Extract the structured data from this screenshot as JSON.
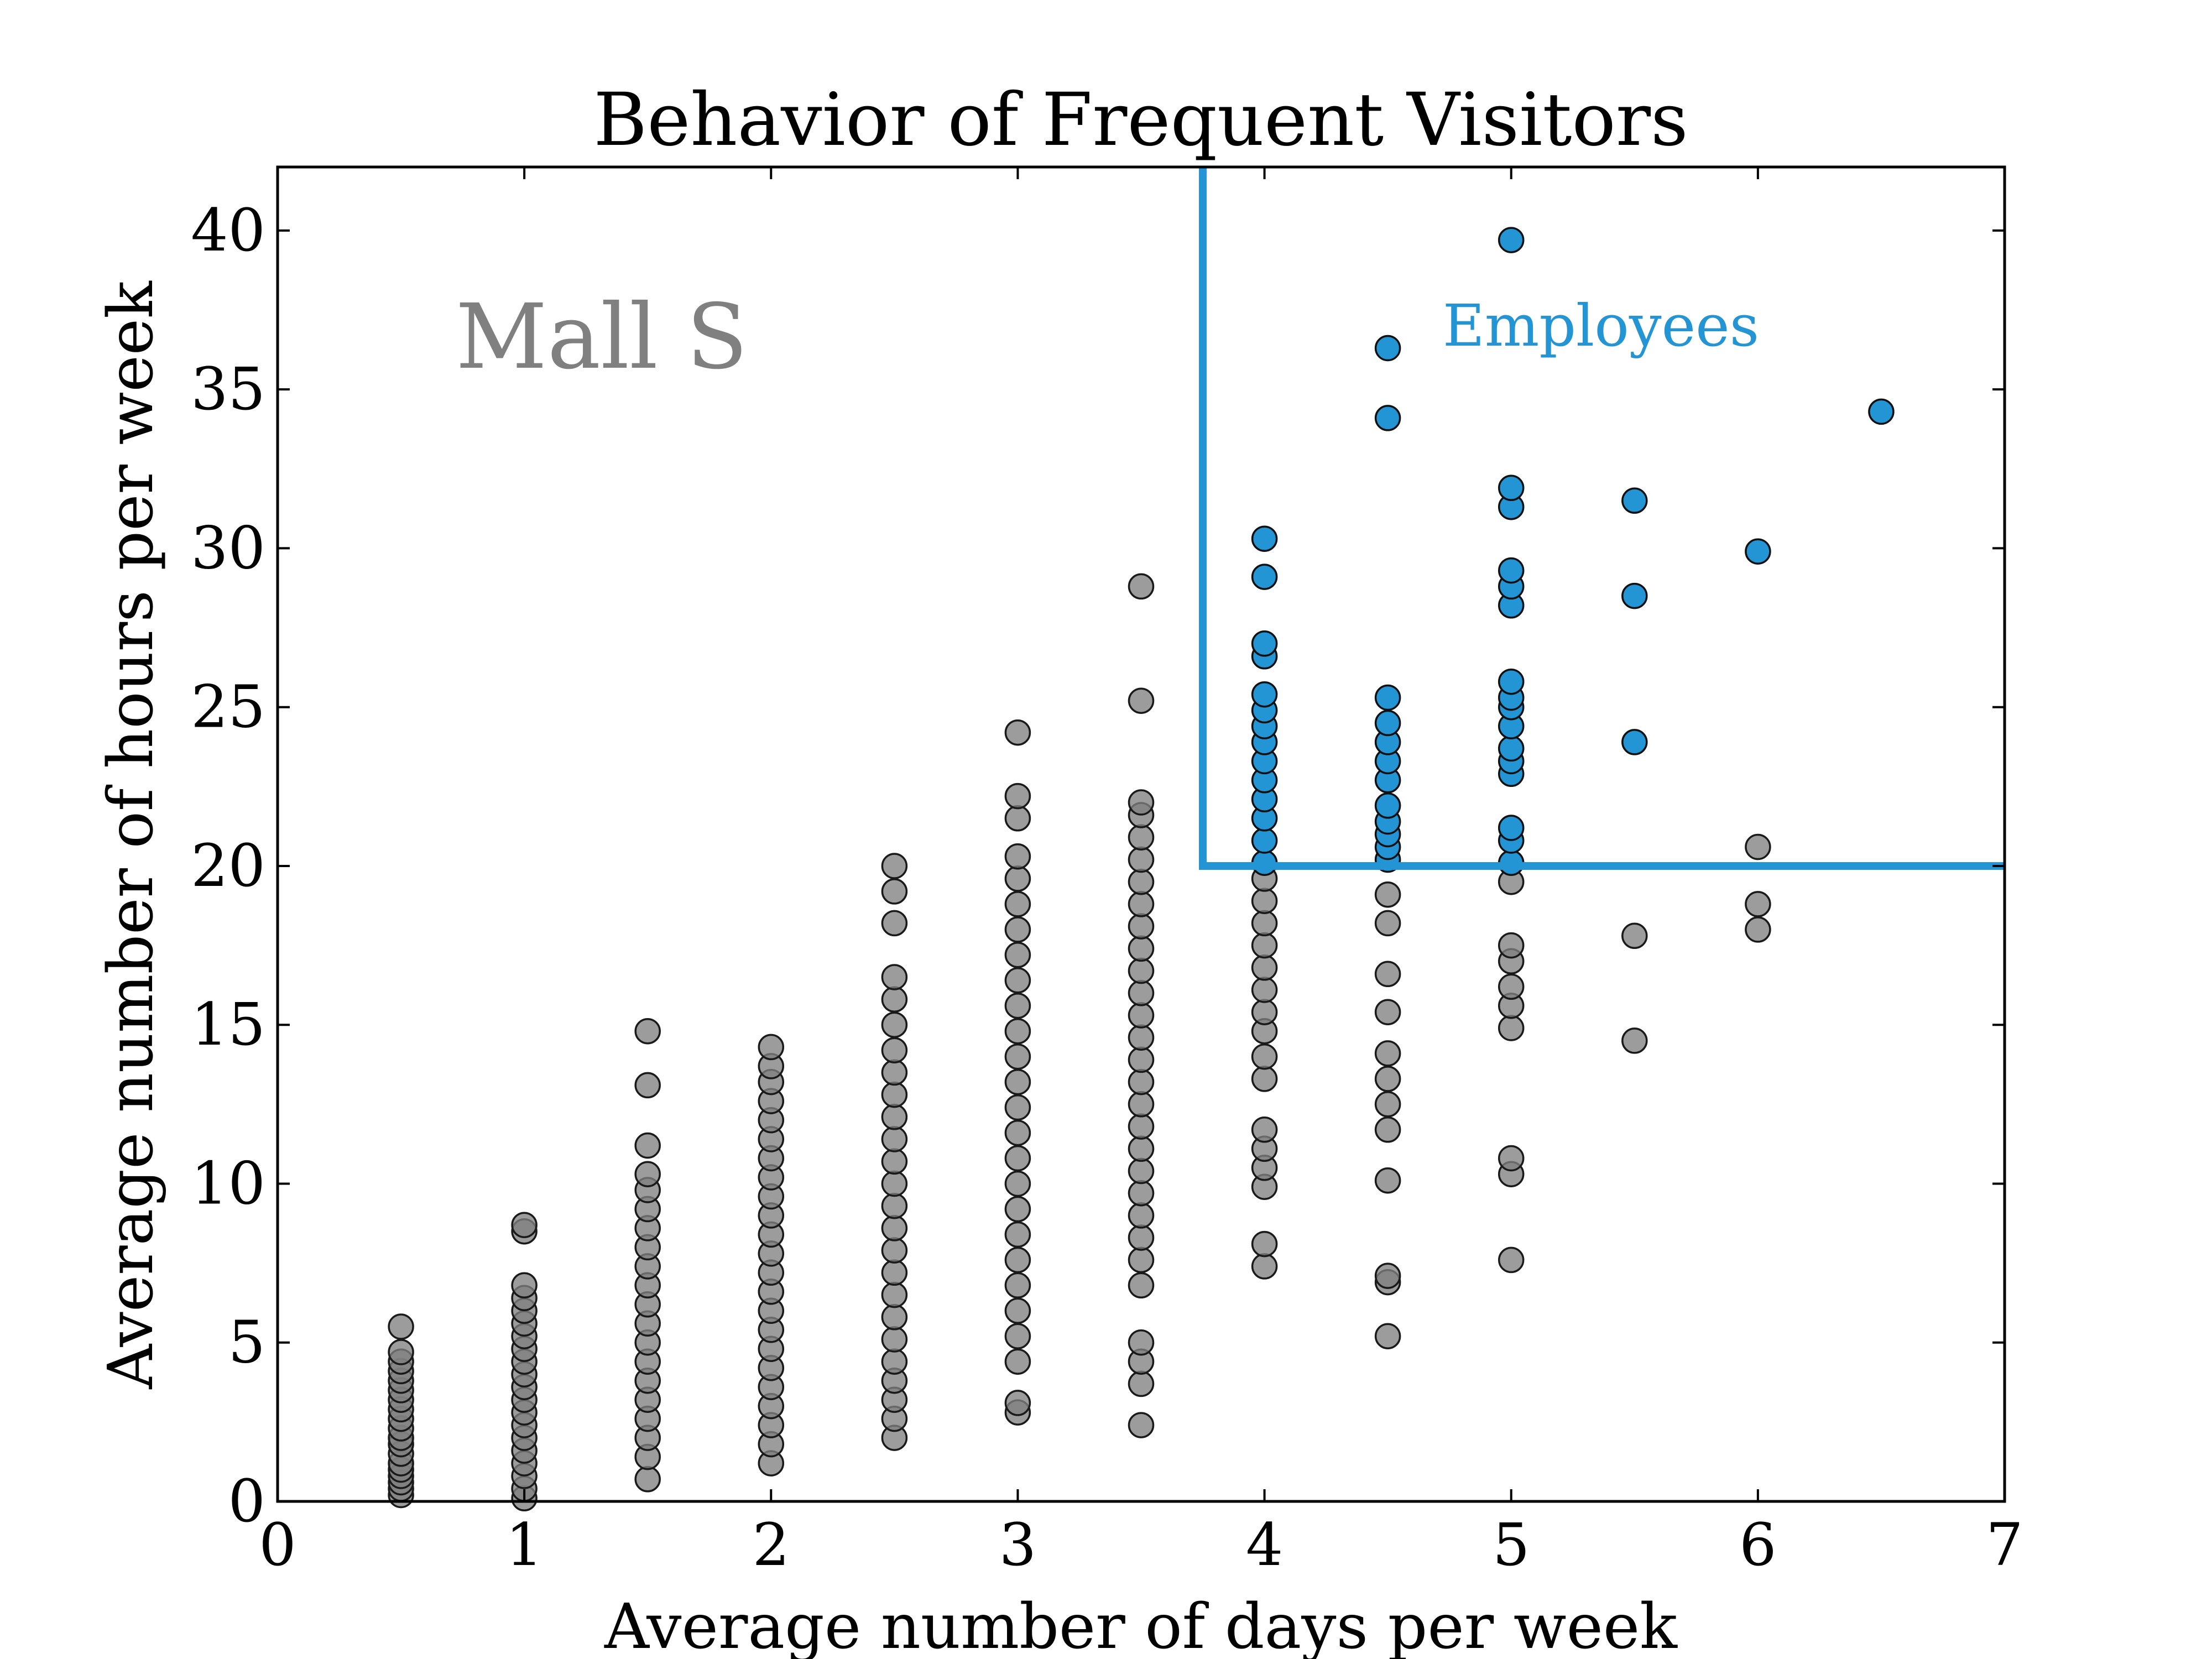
{
  "chart_data": {
    "type": "scatter",
    "title": "Behavior of Frequent Visitors",
    "xlabel": "Average number of days per week",
    "ylabel": "Average number of hours per week",
    "xlim": [
      0,
      7
    ],
    "ylim": [
      0,
      42
    ],
    "xticks": [
      "0",
      "1",
      "2",
      "3",
      "4",
      "5",
      "6",
      "7"
    ],
    "yticks": [
      "0",
      "5",
      "10",
      "15",
      "20",
      "25",
      "30",
      "35",
      "40"
    ],
    "grid": false,
    "annotations": {
      "mall": "Mall S",
      "employees": "Employees"
    },
    "colors": {
      "visitor": "#808080",
      "employee": "#2394d4",
      "threshold": "#2394d4"
    },
    "threshold": {
      "x": 3.75,
      "y": 20
    },
    "series": [
      {
        "points": [
          [
            0.5,
            0.2
          ],
          [
            0.5,
            0.4
          ],
          [
            0.5,
            0.6
          ],
          [
            0.5,
            0.8
          ],
          [
            0.5,
            1.0
          ],
          [
            0.5,
            1.2
          ],
          [
            0.5,
            1.5
          ],
          [
            0.5,
            1.8
          ],
          [
            0.5,
            2.0
          ],
          [
            0.5,
            2.3
          ],
          [
            0.5,
            2.6
          ],
          [
            0.5,
            2.9
          ],
          [
            0.5,
            3.2
          ],
          [
            0.5,
            3.5
          ],
          [
            0.5,
            3.8
          ],
          [
            0.5,
            4.1
          ],
          [
            0.5,
            4.4
          ],
          [
            0.5,
            4.7
          ],
          [
            0.5,
            5.5
          ],
          [
            1,
            0.1
          ],
          [
            1,
            0.4
          ],
          [
            1,
            0.8
          ],
          [
            1,
            1.2
          ],
          [
            1,
            1.6
          ],
          [
            1,
            2.0
          ],
          [
            1,
            2.4
          ],
          [
            1,
            2.8
          ],
          [
            1,
            3.2
          ],
          [
            1,
            3.6
          ],
          [
            1,
            4.0
          ],
          [
            1,
            4.4
          ],
          [
            1,
            4.8
          ],
          [
            1,
            5.2
          ],
          [
            1,
            5.6
          ],
          [
            1,
            6.0
          ],
          [
            1,
            6.4
          ],
          [
            1,
            6.8
          ],
          [
            1,
            8.5
          ],
          [
            1,
            8.7
          ],
          [
            1.5,
            0.7
          ],
          [
            1.5,
            1.4
          ],
          [
            1.5,
            2.0
          ],
          [
            1.5,
            2.6
          ],
          [
            1.5,
            3.2
          ],
          [
            1.5,
            3.8
          ],
          [
            1.5,
            4.4
          ],
          [
            1.5,
            5.0
          ],
          [
            1.5,
            5.6
          ],
          [
            1.5,
            6.2
          ],
          [
            1.5,
            6.8
          ],
          [
            1.5,
            7.4
          ],
          [
            1.5,
            8.0
          ],
          [
            1.5,
            8.6
          ],
          [
            1.5,
            9.2
          ],
          [
            1.5,
            9.8
          ],
          [
            1.5,
            10.3
          ],
          [
            1.5,
            11.2
          ],
          [
            1.5,
            13.1
          ],
          [
            1.5,
            14.8
          ],
          [
            2,
            1.2
          ],
          [
            2,
            1.8
          ],
          [
            2,
            2.4
          ],
          [
            2,
            3.0
          ],
          [
            2,
            3.6
          ],
          [
            2,
            4.2
          ],
          [
            2,
            4.8
          ],
          [
            2,
            5.4
          ],
          [
            2,
            6.0
          ],
          [
            2,
            6.6
          ],
          [
            2,
            7.2
          ],
          [
            2,
            7.8
          ],
          [
            2,
            8.4
          ],
          [
            2,
            9.0
          ],
          [
            2,
            9.6
          ],
          [
            2,
            10.2
          ],
          [
            2,
            10.8
          ],
          [
            2,
            11.4
          ],
          [
            2,
            12.0
          ],
          [
            2,
            12.6
          ],
          [
            2,
            13.2
          ],
          [
            2,
            13.7
          ],
          [
            2,
            14.3
          ],
          [
            2.5,
            2.0
          ],
          [
            2.5,
            2.6
          ],
          [
            2.5,
            3.2
          ],
          [
            2.5,
            3.8
          ],
          [
            2.5,
            4.4
          ],
          [
            2.5,
            5.1
          ],
          [
            2.5,
            5.8
          ],
          [
            2.5,
            6.5
          ],
          [
            2.5,
            7.2
          ],
          [
            2.5,
            7.9
          ],
          [
            2.5,
            8.6
          ],
          [
            2.5,
            9.3
          ],
          [
            2.5,
            10.0
          ],
          [
            2.5,
            10.7
          ],
          [
            2.5,
            11.4
          ],
          [
            2.5,
            12.1
          ],
          [
            2.5,
            12.8
          ],
          [
            2.5,
            13.5
          ],
          [
            2.5,
            14.2
          ],
          [
            2.5,
            15.0
          ],
          [
            2.5,
            15.8
          ],
          [
            2.5,
            16.5
          ],
          [
            2.5,
            18.2
          ],
          [
            2.5,
            19.2
          ],
          [
            2.5,
            20.0
          ],
          [
            3,
            2.8
          ],
          [
            3,
            3.1
          ],
          [
            3,
            4.4
          ],
          [
            3,
            5.2
          ],
          [
            3,
            6.0
          ],
          [
            3,
            6.8
          ],
          [
            3,
            7.6
          ],
          [
            3,
            8.4
          ],
          [
            3,
            9.2
          ],
          [
            3,
            10.0
          ],
          [
            3,
            10.8
          ],
          [
            3,
            11.6
          ],
          [
            3,
            12.4
          ],
          [
            3,
            13.2
          ],
          [
            3,
            14.0
          ],
          [
            3,
            14.8
          ],
          [
            3,
            15.6
          ],
          [
            3,
            16.4
          ],
          [
            3,
            17.2
          ],
          [
            3,
            18.0
          ],
          [
            3,
            18.8
          ],
          [
            3,
            19.6
          ],
          [
            3,
            20.3
          ],
          [
            3,
            21.5
          ],
          [
            3,
            22.2
          ],
          [
            3,
            24.2
          ],
          [
            3.5,
            2.4
          ],
          [
            3.5,
            3.7
          ],
          [
            3.5,
            4.4
          ],
          [
            3.5,
            5.0
          ],
          [
            3.5,
            6.8
          ],
          [
            3.5,
            7.6
          ],
          [
            3.5,
            8.3
          ],
          [
            3.5,
            9.0
          ],
          [
            3.5,
            9.7
          ],
          [
            3.5,
            10.4
          ],
          [
            3.5,
            11.1
          ],
          [
            3.5,
            11.8
          ],
          [
            3.5,
            12.5
          ],
          [
            3.5,
            13.2
          ],
          [
            3.5,
            13.9
          ],
          [
            3.5,
            14.6
          ],
          [
            3.5,
            15.3
          ],
          [
            3.5,
            16.0
          ],
          [
            3.5,
            16.7
          ],
          [
            3.5,
            17.4
          ],
          [
            3.5,
            18.1
          ],
          [
            3.5,
            18.8
          ],
          [
            3.5,
            19.5
          ],
          [
            3.5,
            20.2
          ],
          [
            3.5,
            20.9
          ],
          [
            3.5,
            21.6
          ],
          [
            3.5,
            22.0
          ],
          [
            3.5,
            25.2
          ],
          [
            3.5,
            28.8
          ],
          [
            4,
            7.4
          ],
          [
            4,
            8.1
          ],
          [
            4,
            9.9
          ],
          [
            4,
            10.5
          ],
          [
            4,
            11.1
          ],
          [
            4,
            11.7
          ],
          [
            4,
            13.3
          ],
          [
            4,
            14.0
          ],
          [
            4,
            14.8
          ],
          [
            4,
            15.4
          ],
          [
            4,
            16.1
          ],
          [
            4,
            16.8
          ],
          [
            4,
            17.5
          ],
          [
            4,
            18.2
          ],
          [
            4,
            18.9
          ],
          [
            4,
            19.6
          ],
          [
            4.5,
            5.2
          ],
          [
            4.5,
            6.9
          ],
          [
            4.5,
            7.1
          ],
          [
            4.5,
            10.1
          ],
          [
            4.5,
            11.7
          ],
          [
            4.5,
            12.5
          ],
          [
            4.5,
            13.3
          ],
          [
            4.5,
            14.1
          ],
          [
            4.5,
            15.4
          ],
          [
            4.5,
            16.6
          ],
          [
            4.5,
            18.2
          ],
          [
            4.5,
            19.1
          ],
          [
            5,
            7.6
          ],
          [
            5,
            10.3
          ],
          [
            5,
            10.8
          ],
          [
            5,
            14.9
          ],
          [
            5,
            15.6
          ],
          [
            5,
            16.2
          ],
          [
            5,
            17.0
          ],
          [
            5,
            17.5
          ],
          [
            5,
            19.5
          ],
          [
            5.5,
            14.5
          ],
          [
            5.5,
            17.8
          ],
          [
            6,
            18.0
          ],
          [
            6,
            18.8
          ],
          [
            6,
            20.6
          ]
        ]
      },
      {
        "points": [
          [
            4,
            20.1
          ],
          [
            4,
            20.8
          ],
          [
            4,
            21.5
          ],
          [
            4,
            22.1
          ],
          [
            4,
            22.7
          ],
          [
            4,
            23.3
          ],
          [
            4,
            23.9
          ],
          [
            4,
            24.4
          ],
          [
            4,
            24.9
          ],
          [
            4,
            25.4
          ],
          [
            4,
            26.6
          ],
          [
            4,
            27.0
          ],
          [
            4,
            29.1
          ],
          [
            4,
            30.3
          ],
          [
            4.5,
            20.2
          ],
          [
            4.5,
            20.6
          ],
          [
            4.5,
            21.0
          ],
          [
            4.5,
            21.4
          ],
          [
            4.5,
            21.9
          ],
          [
            4.5,
            22.7
          ],
          [
            4.5,
            23.3
          ],
          [
            4.5,
            23.9
          ],
          [
            4.5,
            24.5
          ],
          [
            4.5,
            25.3
          ],
          [
            4.5,
            34.1
          ],
          [
            4.5,
            36.3
          ],
          [
            5,
            20.1
          ],
          [
            5,
            20.8
          ],
          [
            5,
            21.2
          ],
          [
            5,
            22.9
          ],
          [
            5,
            23.3
          ],
          [
            5,
            23.7
          ],
          [
            5,
            24.4
          ],
          [
            5,
            25.0
          ],
          [
            5,
            25.3
          ],
          [
            5,
            25.8
          ],
          [
            5,
            28.2
          ],
          [
            5,
            28.8
          ],
          [
            5,
            29.3
          ],
          [
            5,
            31.3
          ],
          [
            5,
            31.9
          ],
          [
            5,
            39.7
          ],
          [
            5.5,
            23.9
          ],
          [
            5.5,
            28.5
          ],
          [
            5.5,
            31.5
          ],
          [
            6,
            29.9
          ],
          [
            6.5,
            34.3
          ]
        ]
      }
    ]
  }
}
